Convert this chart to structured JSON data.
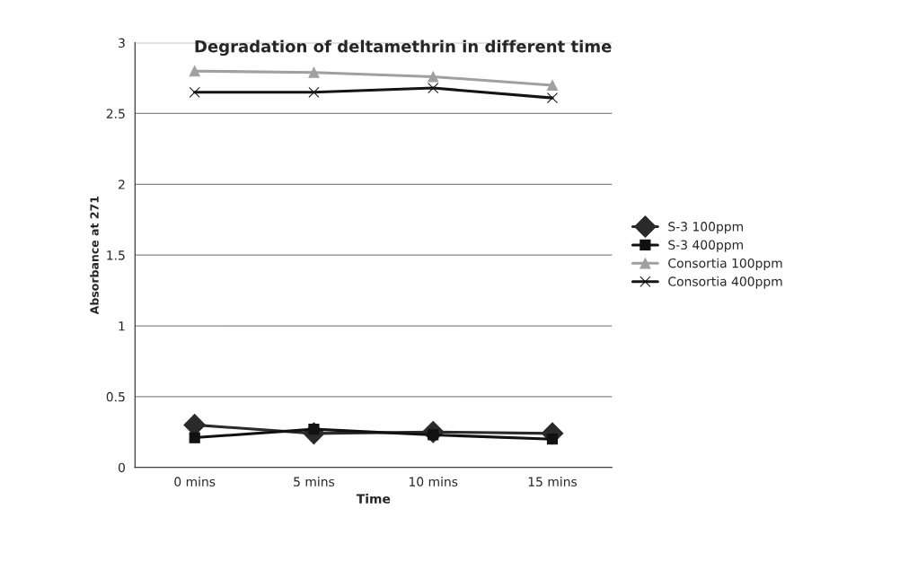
{
  "chart_data": {
    "type": "line",
    "title": "Degradation of deltamethrin in different time",
    "xlabel": "Time",
    "ylabel": "Absorbance at 271",
    "categories": [
      "0 mins",
      "5 mins",
      "10 mins",
      "15 mins"
    ],
    "series": [
      {
        "name": "S-3 100ppm",
        "color": "#2a2a2a",
        "marker": "diamond",
        "values": [
          0.3,
          0.24,
          0.25,
          0.24
        ]
      },
      {
        "name": "S-3 400ppm",
        "color": "#111111",
        "marker": "square",
        "values": [
          0.21,
          0.27,
          0.23,
          0.2
        ]
      },
      {
        "name": "Consortia 100ppm",
        "color": "#a0a0a0",
        "marker": "triangle",
        "values": [
          2.8,
          2.79,
          2.76,
          2.7
        ]
      },
      {
        "name": "Consortia 400ppm",
        "color": "#141414",
        "marker": "cross",
        "values": [
          2.65,
          2.65,
          2.68,
          2.61
        ]
      }
    ],
    "ylim": [
      0,
      3
    ],
    "yticks": [
      0,
      0.5,
      1,
      1.5,
      2,
      2.5,
      3
    ],
    "grid": "y",
    "legend": "right",
    "line_style": "solid"
  }
}
